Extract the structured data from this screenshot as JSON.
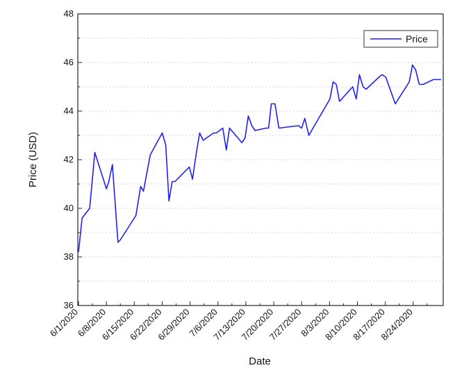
{
  "chart_data": {
    "type": "line",
    "xlabel": "Date",
    "ylabel": "Price (USD)",
    "ylim": [
      36,
      48
    ],
    "y_ticks": [
      36,
      38,
      40,
      42,
      44,
      46,
      48
    ],
    "x_range_days": [
      0,
      91
    ],
    "x_ticks": [
      {
        "label": "6/1/2020",
        "day": 0
      },
      {
        "label": "6/8/2020",
        "day": 7
      },
      {
        "label": "6/15/2020",
        "day": 14
      },
      {
        "label": "6/22/2020",
        "day": 21
      },
      {
        "label": "6/29/2020",
        "day": 28
      },
      {
        "label": "7/6/2020",
        "day": 35
      },
      {
        "label": "7/13/2020",
        "day": 42
      },
      {
        "label": "7/20/2020",
        "day": 49
      },
      {
        "label": "7/27/2020",
        "day": 56
      },
      {
        "label": "8/3/2020",
        "day": 63
      },
      {
        "label": "8/10/2020",
        "day": 70
      },
      {
        "label": "8/17/2020",
        "day": 77
      },
      {
        "label": "8/24/2020",
        "day": 84
      }
    ],
    "series": [
      {
        "name": "Price",
        "color": "#1f1ff0",
        "points": [
          [
            0.0,
            38.2
          ],
          [
            0.9,
            39.6
          ],
          [
            2.8,
            40.0
          ],
          [
            4.1,
            42.3
          ],
          [
            7.0,
            40.8
          ],
          [
            7.6,
            41.1
          ],
          [
            8.5,
            41.8
          ],
          [
            9.9,
            38.6
          ],
          [
            10.5,
            38.7
          ],
          [
            14.4,
            39.7
          ],
          [
            15.6,
            40.9
          ],
          [
            16.3,
            40.7
          ],
          [
            17.2,
            41.5
          ],
          [
            18.0,
            42.2
          ],
          [
            21.0,
            43.1
          ],
          [
            21.9,
            42.6
          ],
          [
            22.7,
            40.3
          ],
          [
            23.5,
            41.1
          ],
          [
            24.2,
            41.1
          ],
          [
            27.8,
            41.7
          ],
          [
            28.6,
            41.2
          ],
          [
            29.5,
            42.2
          ],
          [
            30.4,
            43.1
          ],
          [
            31.3,
            42.8
          ],
          [
            33.9,
            43.1
          ],
          [
            34.6,
            43.1
          ],
          [
            35.4,
            43.2
          ],
          [
            36.2,
            43.3
          ],
          [
            37.1,
            42.4
          ],
          [
            37.9,
            43.3
          ],
          [
            40.5,
            42.8
          ],
          [
            41.0,
            42.7
          ],
          [
            41.8,
            42.9
          ],
          [
            42.6,
            43.8
          ],
          [
            43.5,
            43.4
          ],
          [
            44.3,
            43.2
          ],
          [
            47.0,
            43.3
          ],
          [
            47.7,
            43.3
          ],
          [
            48.4,
            44.3
          ],
          [
            49.3,
            44.3
          ],
          [
            50.3,
            43.3
          ],
          [
            55.2,
            43.4
          ],
          [
            56.0,
            43.3
          ],
          [
            56.8,
            43.7
          ],
          [
            57.8,
            43.0
          ],
          [
            59.2,
            43.4
          ],
          [
            63.1,
            44.5
          ],
          [
            63.9,
            45.2
          ],
          [
            64.7,
            45.1
          ],
          [
            65.5,
            44.4
          ],
          [
            68.8,
            45.0
          ],
          [
            69.7,
            44.5
          ],
          [
            70.5,
            45.5
          ],
          [
            71.4,
            45.0
          ],
          [
            72.2,
            44.9
          ],
          [
            75.4,
            45.4
          ],
          [
            76.2,
            45.5
          ],
          [
            77.1,
            45.4
          ],
          [
            79.5,
            44.3
          ],
          [
            83.0,
            45.2
          ],
          [
            83.8,
            45.9
          ],
          [
            84.6,
            45.7
          ],
          [
            85.5,
            45.1
          ],
          [
            86.5,
            45.1
          ],
          [
            89.1,
            45.3
          ],
          [
            91.0,
            45.3
          ]
        ]
      }
    ],
    "legend_position": "top-right",
    "grid": true
  }
}
